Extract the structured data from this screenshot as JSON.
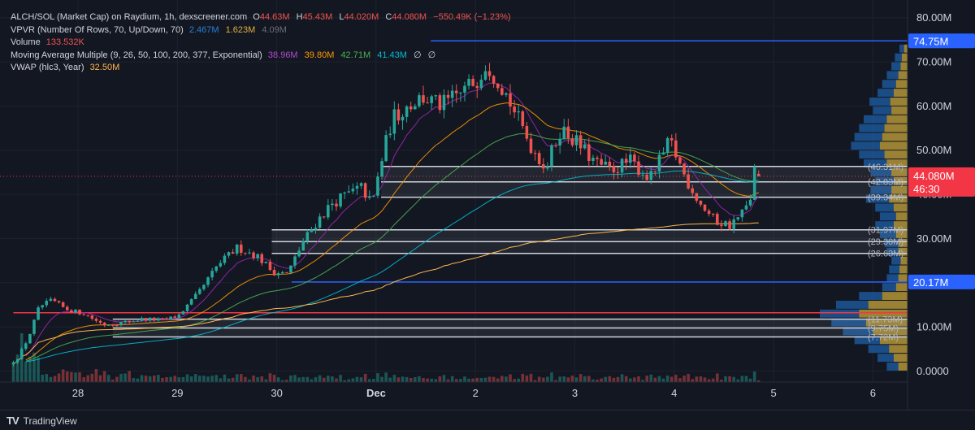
{
  "legend": {
    "title": "ALCH/SOL (Market Cap) on Raydium, 1h, dexscreener.com",
    "o_label": "O",
    "o_val": "44.63M",
    "h_label": "H",
    "h_val": "45.43M",
    "l_label": "L",
    "l_val": "44.020M",
    "c_label": "C",
    "c_val": "44.080M",
    "change": "−550.49K (−1.23%)",
    "vpvr_label": "VPVR (Number Of Rows, 70, Up/Down, 70)",
    "vpvr_vals": [
      "2.467M",
      "1.623M",
      "4.09M"
    ],
    "volume_label": "Volume",
    "volume_val": "133.532K",
    "ma_label": "Moving Average Multiple (9, 26, 50, 100, 200, 377, Exponential)",
    "ma_vals": [
      "38.96M",
      "39.80M",
      "42.71M",
      "41.43M",
      "∅",
      "∅"
    ],
    "vwap_label": "VWAP (hlc3, Year)",
    "vwap_val": "32.50M"
  },
  "colors": {
    "background": "#131722",
    "up": "#26a69a",
    "down": "#ef5350",
    "grid": "#1e222d",
    "blue_line": "#2962ff",
    "red_line": "#f23645",
    "zone_line": "#d1d4dc",
    "ma_colors": [
      "#9c27b0",
      "#ff9800",
      "#4caf50",
      "#00bcd4"
    ],
    "vwap": "#ffb74d",
    "vpvr_up": "#1e5fa8",
    "vpvr_down": "#c8a53a"
  },
  "brand": {
    "name": "TradingView"
  },
  "chart_data": {
    "type": "candlestick",
    "title": "ALCH/SOL (Market Cap) on Raydium, 1h",
    "y_unit": "M",
    "ylim": [
      -2.5,
      84
    ],
    "y_ticks": [
      {
        "value": 80,
        "label": "80.00M"
      },
      {
        "value": 70,
        "label": "70.00M"
      },
      {
        "value": 60,
        "label": "60.00M"
      },
      {
        "value": 50,
        "label": "50.00M"
      },
      {
        "value": 40,
        "label": "40.00M"
      },
      {
        "value": 30,
        "label": "30.00M"
      },
      {
        "value": 20,
        "label": "20.00M"
      },
      {
        "value": 10,
        "label": "10.00M"
      },
      {
        "value": 0,
        "label": "0.0000"
      }
    ],
    "x_ticks": [
      {
        "day": 1,
        "label": "28",
        "bold": false
      },
      {
        "day": 2,
        "label": "29",
        "bold": false
      },
      {
        "day": 3,
        "label": "30",
        "bold": false
      },
      {
        "day": 4,
        "label": "Dec",
        "bold": true
      },
      {
        "day": 5,
        "label": "2",
        "bold": false
      },
      {
        "day": 6,
        "label": "3",
        "bold": false
      },
      {
        "day": 7,
        "label": "4",
        "bold": false
      },
      {
        "day": 8,
        "label": "5",
        "bold": false
      },
      {
        "day": 9,
        "label": "6",
        "bold": false
      }
    ],
    "time_range_days": [
      0.35,
      9.6
    ],
    "price_anchors": [
      [
        0.35,
        1.5
      ],
      [
        0.45,
        3.5
      ],
      [
        0.55,
        8.0
      ],
      [
        0.65,
        14.5
      ],
      [
        0.78,
        16.0
      ],
      [
        0.92,
        14.0
      ],
      [
        1.1,
        13.0
      ],
      [
        1.3,
        10.5
      ],
      [
        1.5,
        11.0
      ],
      [
        1.7,
        11.8
      ],
      [
        1.9,
        11.5
      ],
      [
        2.05,
        12.5
      ],
      [
        2.25,
        17.5
      ],
      [
        2.45,
        24.0
      ],
      [
        2.65,
        28.0
      ],
      [
        2.85,
        26.0
      ],
      [
        3.0,
        22.5
      ],
      [
        3.15,
        22.0
      ],
      [
        3.3,
        29.0
      ],
      [
        3.45,
        34.0
      ],
      [
        3.6,
        38.0
      ],
      [
        3.75,
        40.0
      ],
      [
        3.9,
        41.5
      ],
      [
        4.0,
        37.5
      ],
      [
        4.1,
        48.0
      ],
      [
        4.2,
        57.0
      ],
      [
        4.35,
        60.0
      ],
      [
        4.5,
        62.0
      ],
      [
        4.7,
        60.0
      ],
      [
        4.9,
        63.0
      ],
      [
        5.05,
        66.0
      ],
      [
        5.15,
        70.0
      ],
      [
        5.3,
        65.0
      ],
      [
        5.45,
        58.0
      ],
      [
        5.6,
        51.0
      ],
      [
        5.75,
        46.0
      ],
      [
        5.9,
        55.0
      ],
      [
        6.05,
        52.0
      ],
      [
        6.25,
        47.0
      ],
      [
        6.4,
        45.5
      ],
      [
        6.6,
        47.5
      ],
      [
        6.8,
        43.5
      ],
      [
        7.0,
        52.0
      ],
      [
        7.15,
        44.0
      ],
      [
        7.3,
        38.0
      ],
      [
        7.45,
        34.0
      ],
      [
        7.6,
        33.0
      ],
      [
        7.7,
        35.0
      ],
      [
        7.8,
        38.0
      ],
      [
        7.85,
        45.5
      ]
    ],
    "last_price": {
      "value": 44.08,
      "label": "44.080M",
      "countdown": "46:30"
    },
    "horizontal_lines": [
      {
        "value": 74.75,
        "label": "74.75M",
        "color": "#2962ff",
        "from_day": 4.55
      },
      {
        "value": 20.17,
        "label": "20.17M",
        "color": "#2962ff",
        "from_day": 3.15
      },
      {
        "value": 13.2,
        "label": "",
        "color": "#f23645",
        "from_day": 0.35
      }
    ],
    "zones": [
      {
        "top": 46.31,
        "bottom": 42.83,
        "from_day": 4.05,
        "labels": [
          "(46.31M)",
          "(42.83M)"
        ]
      },
      {
        "top": 42.83,
        "bottom": 39.34,
        "from_day": 4.05,
        "labels": [
          "(39.34M)"
        ]
      },
      {
        "top": 31.97,
        "bottom": 26.63,
        "from_day": 2.95,
        "labels": [
          "(31.97M)",
          "(29.30M)",
          "(26.63M)"
        ]
      },
      {
        "top": 11.73,
        "bottom": 7.72,
        "from_day": 1.35,
        "labels": [
          "(11.73M)",
          "(9.75M)",
          "(7.72M)"
        ]
      }
    ],
    "mid_lines": [
      29.3,
      9.75
    ],
    "vwap_start_day": 0.35,
    "vpvr_profile": [
      {
        "price": 73,
        "up": 4,
        "down": 3
      },
      {
        "price": 71,
        "up": 6,
        "down": 5
      },
      {
        "price": 69,
        "up": 8,
        "down": 6
      },
      {
        "price": 67,
        "up": 10,
        "down": 8
      },
      {
        "price": 65,
        "up": 12,
        "down": 10
      },
      {
        "price": 63,
        "up": 14,
        "down": 12
      },
      {
        "price": 61,
        "up": 18,
        "down": 15
      },
      {
        "price": 59,
        "up": 16,
        "down": 14
      },
      {
        "price": 57,
        "up": 20,
        "down": 18
      },
      {
        "price": 55,
        "up": 22,
        "down": 20
      },
      {
        "price": 53,
        "up": 24,
        "down": 22
      },
      {
        "price": 51,
        "up": 25,
        "down": 24
      },
      {
        "price": 49,
        "up": 22,
        "down": 20
      },
      {
        "price": 47,
        "up": 20,
        "down": 18
      },
      {
        "price": 45,
        "up": 18,
        "down": 14
      },
      {
        "price": 43,
        "up": 16,
        "down": 12
      },
      {
        "price": 41,
        "up": 18,
        "down": 14
      },
      {
        "price": 39,
        "up": 20,
        "down": 16
      },
      {
        "price": 37,
        "up": 16,
        "down": 12
      },
      {
        "price": 35,
        "up": 14,
        "down": 10
      },
      {
        "price": 33,
        "up": 16,
        "down": 12
      },
      {
        "price": 31,
        "up": 14,
        "down": 10
      },
      {
        "price": 29,
        "up": 12,
        "down": 8
      },
      {
        "price": 27,
        "up": 10,
        "down": 8
      },
      {
        "price": 25,
        "up": 8,
        "down": 6
      },
      {
        "price": 23,
        "up": 9,
        "down": 7
      },
      {
        "price": 21,
        "up": 10,
        "down": 8
      },
      {
        "price": 19,
        "up": 12,
        "down": 10
      },
      {
        "price": 17,
        "up": 20,
        "down": 22
      },
      {
        "price": 15,
        "up": 28,
        "down": 34
      },
      {
        "price": 13,
        "up": 34,
        "down": 42
      },
      {
        "price": 11,
        "up": 30,
        "down": 36
      },
      {
        "price": 9,
        "up": 26,
        "down": 30
      },
      {
        "price": 7,
        "up": 22,
        "down": 24
      },
      {
        "price": 5,
        "up": 18,
        "down": 16
      },
      {
        "price": 3,
        "up": 14,
        "down": 12
      },
      {
        "price": 1,
        "up": 10,
        "down": 8
      }
    ]
  }
}
